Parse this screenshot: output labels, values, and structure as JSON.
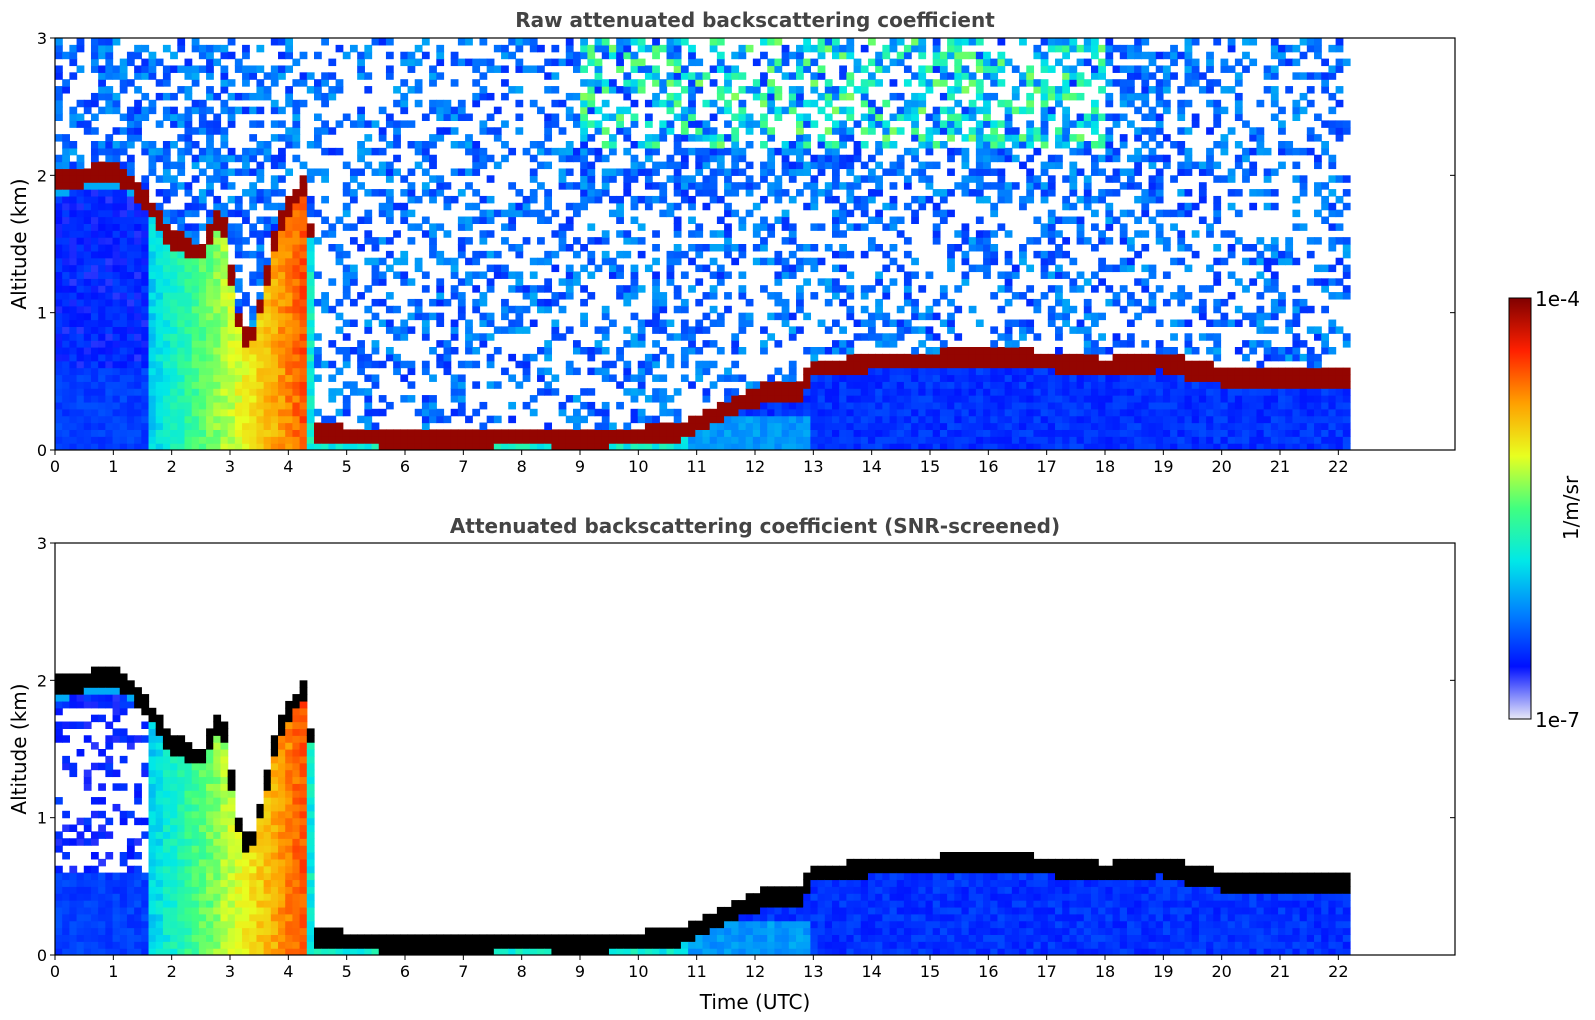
{
  "chart_data": [
    {
      "type": "heatmap",
      "title": "Raw attenuated backscattering coefficient",
      "xlabel": "",
      "ylabel": "Altitude (km)",
      "xlim": [
        0,
        24
      ],
      "ylim": [
        0,
        3
      ],
      "x_ticks": [
        "0",
        "1",
        "2",
        "3",
        "4",
        "5",
        "6",
        "7",
        "8",
        "9",
        "10",
        "11",
        "12",
        "13",
        "14",
        "15",
        "16",
        "17",
        "18",
        "19",
        "20",
        "21",
        "22"
      ],
      "y_ticks": [
        "0",
        "1",
        "2",
        "3"
      ],
      "data_extent_hours": [
        0,
        22.2
      ],
      "screened": false,
      "features": [
        {
          "label": "cloud/aerosol layer top",
          "points": [
            [
              0,
              1.95
            ],
            [
              0.5,
              2.0
            ],
            [
              1.0,
              2.02
            ],
            [
              1.3,
              1.95
            ],
            [
              1.6,
              1.8
            ],
            [
              1.8,
              1.65
            ],
            [
              2.0,
              1.55
            ],
            [
              2.2,
              1.5
            ],
            [
              2.5,
              1.42
            ],
            [
              2.7,
              1.6
            ],
            [
              2.85,
              1.75
            ],
            [
              3.0,
              1.35
            ],
            [
              3.2,
              0.8
            ],
            [
              3.4,
              0.85
            ],
            [
              3.6,
              1.2
            ],
            [
              3.8,
              1.6
            ],
            [
              4.0,
              1.75
            ],
            [
              4.2,
              1.9
            ],
            [
              4.35,
              1.95
            ],
            [
              4.5,
              0.12
            ],
            [
              5,
              0.1
            ],
            [
              6,
              0.09
            ],
            [
              7,
              0.09
            ],
            [
              8,
              0.1
            ],
            [
              9,
              0.09
            ],
            [
              10,
              0.1
            ],
            [
              10.8,
              0.15
            ],
            [
              11.3,
              0.25
            ],
            [
              11.8,
              0.35
            ],
            [
              12.3,
              0.45
            ],
            [
              12.7,
              0.4
            ],
            [
              13.0,
              0.6
            ],
            [
              13.5,
              0.6
            ],
            [
              14,
              0.65
            ],
            [
              15,
              0.65
            ],
            [
              16,
              0.68
            ],
            [
              17,
              0.65
            ],
            [
              18,
              0.6
            ],
            [
              19,
              0.65
            ],
            [
              19.5,
              0.58
            ],
            [
              20.3,
              0.52
            ]
          ]
        },
        {
          "label": "precipitation columns",
          "x_range": [
            1.6,
            4.35
          ]
        }
      ]
    },
    {
      "type": "heatmap",
      "title": "Attenuated backscattering coefficient (SNR-screened)",
      "xlabel": "Time (UTC)",
      "ylabel": "Altitude (km)",
      "xlim": [
        0,
        24
      ],
      "ylim": [
        0,
        3
      ],
      "x_ticks": [
        "0",
        "1",
        "2",
        "3",
        "4",
        "5",
        "6",
        "7",
        "8",
        "9",
        "10",
        "11",
        "12",
        "13",
        "14",
        "15",
        "16",
        "17",
        "18",
        "19",
        "20",
        "21",
        "22"
      ],
      "y_ticks": [
        "0",
        "1",
        "2",
        "3"
      ],
      "data_extent_hours": [
        0,
        22.2
      ],
      "screened": true
    }
  ],
  "colorbar": {
    "label": "1/m/sr",
    "min_label": "1e-7",
    "max_label": "1e-4",
    "scale": "log",
    "colormap": [
      "#e8e8f8",
      "#0010ff",
      "#0080ff",
      "#00e8e8",
      "#40ff80",
      "#e8ff20",
      "#ffa000",
      "#ff2000",
      "#800000"
    ]
  }
}
